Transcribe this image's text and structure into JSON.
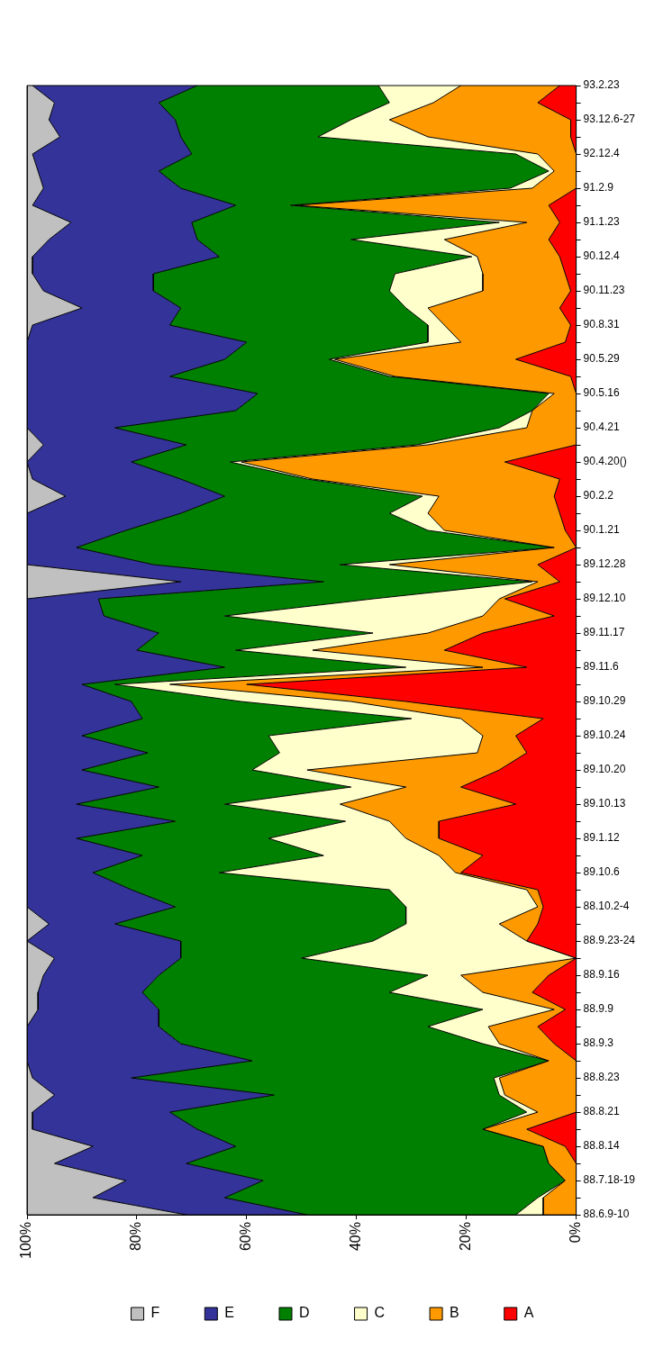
{
  "chart_data": {
    "type": "area",
    "stacked": true,
    "orientation": "horizontal",
    "legend": "bottom",
    "grid": false,
    "marker": "none",
    "categories": [
      "93.2.23",
      null,
      "93.12.6-27",
      null,
      "92.12.4",
      null,
      "91.2.9",
      null,
      "91.1.23",
      null,
      "90.12.4",
      null,
      "90.11.23",
      null,
      "90.8.31",
      null,
      "90.5.29",
      null,
      "90.5.16",
      null,
      "90.4.21",
      null,
      "90.4.20()",
      null,
      "90.2.2",
      null,
      "90.1.21",
      null,
      "89.12.28",
      null,
      "89.12.10",
      null,
      "89.11.17",
      null,
      "89.11.6",
      null,
      "89.10.29",
      null,
      "89.10.24",
      null,
      "89.10.20",
      null,
      "89.10.13",
      null,
      "89.1.12",
      null,
      "89.10.6",
      null,
      "88.10.2-4",
      null,
      "88.9.23-24",
      null,
      "88.9.16",
      null,
      "88.9.9",
      null,
      "88.9.3",
      null,
      "88.8.23",
      null,
      "88.8.21",
      null,
      "88.8.14",
      null,
      "88.7.18-19",
      null,
      "88.6.9-10"
    ],
    "xlim": [
      100,
      0
    ],
    "xticks": [
      {
        "value": 100,
        "label": "100%"
      },
      {
        "value": 80,
        "label": "80%"
      },
      {
        "value": 60,
        "label": "60%"
      },
      {
        "value": 40,
        "label": "40%"
      },
      {
        "value": 20,
        "label": "20%"
      },
      {
        "value": 0,
        "label": "0%"
      }
    ],
    "series": [
      {
        "name": "A",
        "color": "#ff0000",
        "values": [
          3,
          7,
          1,
          1,
          0,
          0,
          0,
          5,
          3,
          5,
          3,
          2,
          1,
          3,
          1,
          2,
          11,
          1,
          0,
          0,
          0,
          0,
          13,
          3,
          4,
          3,
          2,
          0,
          7,
          3,
          13,
          4,
          17,
          24,
          9,
          60,
          31,
          6,
          11,
          9,
          14,
          21,
          11,
          25,
          25,
          17,
          21,
          7,
          6,
          7,
          9,
          0,
          5,
          8,
          2,
          7,
          4,
          0,
          0,
          0,
          0,
          9,
          2,
          0,
          0,
          0,
          0
        ]
      },
      {
        "name": "B",
        "color": "#ff9900",
        "values": [
          18,
          19,
          33,
          26,
          7,
          4,
          8,
          46,
          6,
          19,
          15,
          15,
          16,
          24,
          23,
          19,
          33,
          32,
          4,
          8,
          9,
          27,
          48,
          45,
          21,
          24,
          22,
          4,
          27,
          4,
          1,
          13,
          10,
          24,
          8,
          14,
          10,
          15,
          6,
          9,
          35,
          10,
          32,
          9,
          6,
          8,
          1,
          2,
          1,
          7,
          0,
          0,
          16,
          9,
          2,
          9,
          10,
          5,
          14,
          13,
          7,
          8,
          4,
          5,
          2,
          6,
          6
        ]
      },
      {
        "name": "C",
        "color": "#ffffcc",
        "values": [
          15,
          8,
          7,
          20,
          4,
          1,
          4,
          1,
          5,
          17,
          1,
          16,
          17,
          4,
          3,
          6,
          1,
          1,
          1,
          0,
          5,
          2,
          2,
          1,
          3,
          7,
          3,
          0,
          9,
          1,
          23,
          47,
          10,
          14,
          14,
          10,
          20,
          9,
          39,
          36,
          10,
          10,
          21,
          8,
          25,
          21,
          43,
          25,
          24,
          17,
          28,
          50,
          6,
          17,
          13,
          11,
          3,
          0,
          1,
          1,
          2,
          0,
          0,
          0,
          0,
          1,
          5
        ]
      },
      {
        "name": "D",
        "color": "#008000",
        "values": [
          33,
          42,
          32,
          25,
          59,
          71,
          60,
          10,
          56,
          28,
          46,
          44,
          43,
          41,
          47,
          33,
          19,
          40,
          53,
          54,
          70,
          42,
          18,
          23,
          36,
          38,
          55,
          87,
          34,
          38,
          50,
          22,
          39,
          18,
          33,
          6,
          20,
          49,
          34,
          24,
          31,
          35,
          27,
          31,
          35,
          33,
          23,
          47,
          42,
          53,
          35,
          22,
          49,
          45,
          59,
          49,
          55,
          54,
          66,
          41,
          65,
          52,
          56,
          66,
          55,
          57,
          38
        ]
      },
      {
        "name": "E",
        "color": "#333399",
        "values": [
          30,
          19,
          23,
          22,
          29,
          22,
          25,
          37,
          22,
          27,
          34,
          22,
          20,
          18,
          25,
          40,
          36,
          26,
          42,
          38,
          16,
          26,
          19,
          27,
          29,
          28,
          18,
          9,
          23,
          26,
          13,
          14,
          24,
          20,
          36,
          10,
          19,
          21,
          10,
          22,
          10,
          24,
          9,
          27,
          9,
          21,
          12,
          19,
          27,
          12,
          28,
          23,
          21,
          19,
          22,
          24,
          28,
          41,
          18,
          40,
          25,
          30,
          26,
          24,
          25,
          24,
          22
        ]
      },
      {
        "name": "F",
        "color": "#c0c0c0",
        "values": [
          1,
          5,
          4,
          6,
          1,
          2,
          3,
          1,
          8,
          4,
          1,
          1,
          3,
          10,
          1,
          0,
          0,
          0,
          0,
          0,
          0,
          3,
          0,
          1,
          7,
          0,
          0,
          0,
          0,
          28,
          0,
          0,
          0,
          0,
          0,
          0,
          0,
          0,
          0,
          0,
          0,
          0,
          0,
          0,
          0,
          0,
          0,
          0,
          0,
          4,
          0,
          5,
          3,
          2,
          2,
          0,
          0,
          0,
          1,
          5,
          1,
          1,
          12,
          5,
          18,
          12,
          29
        ]
      }
    ]
  }
}
